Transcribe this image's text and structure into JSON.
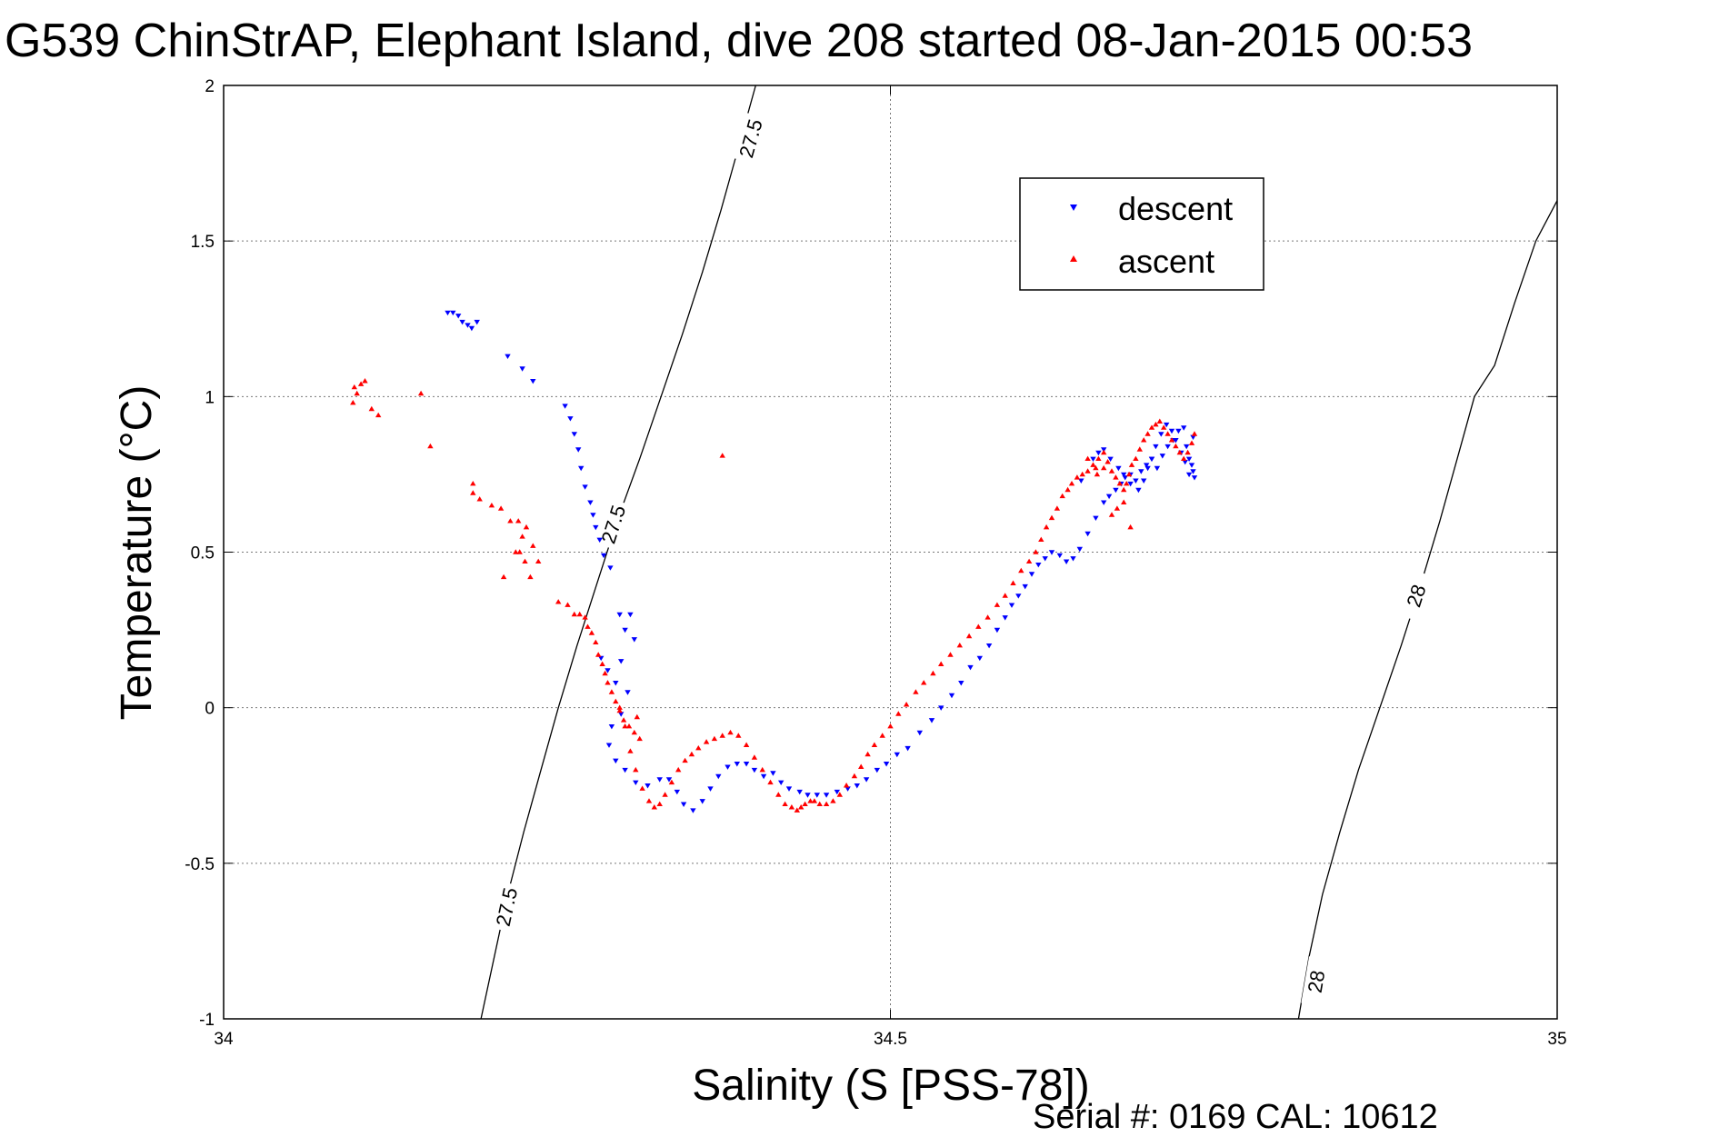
{
  "chart_data": {
    "type": "scatter",
    "title": "G539 ChinStrAP, Elephant Island, dive 208 started 08-Jan-2015 00:53",
    "xlabel": "Salinity (S [PSS-78])",
    "ylabel": "Temperature (°C)",
    "xlim": [
      34,
      35
    ],
    "ylim": [
      -1,
      2
    ],
    "xticks": [
      34,
      34.5,
      35
    ],
    "xtick_labels": [
      "34",
      "34.5",
      "35"
    ],
    "yticks": [
      -1,
      -0.5,
      0,
      0.5,
      1,
      1.5,
      2
    ],
    "ytick_labels": [
      "-1",
      "-0.5",
      "0",
      "0.5",
      "1",
      "1.5",
      "2"
    ],
    "grid": true,
    "legend_position": "top-right",
    "footer": "Serial #: 0169 CAL: 10612",
    "colors": {
      "descent": "#0000ff",
      "ascent": "#ff0000",
      "contour": "#000000",
      "grid": "#777777"
    },
    "density_contours": [
      {
        "value": 27.5,
        "x": [
          34.193,
          34.203,
          34.213,
          34.225,
          34.238,
          34.251,
          34.265,
          34.28,
          34.295,
          34.312,
          34.328,
          34.344,
          34.359,
          34.373,
          34.386,
          34.399
        ],
        "y": [
          -1.0,
          -0.8,
          -0.6,
          -0.4,
          -0.2,
          0.0,
          0.2,
          0.4,
          0.6,
          0.8,
          1.0,
          1.2,
          1.4,
          1.6,
          1.8,
          2.0
        ],
        "labels": [
          {
            "text": "27.5",
            "x": 34.212,
            "y": -0.64
          },
          {
            "text": "27.5",
            "x": 34.292,
            "y": 0.59
          },
          {
            "text": "27.5",
            "x": 34.395,
            "y": 1.83
          }
        ]
      },
      {
        "value": 28,
        "x": [
          34.806,
          34.814,
          34.824,
          34.837,
          34.851,
          34.867,
          34.883,
          34.898,
          34.912,
          34.925,
          34.938,
          34.953,
          34.968,
          34.984,
          35.0
        ],
        "y": [
          -1.0,
          -0.8,
          -0.6,
          -0.4,
          -0.2,
          0.0,
          0.2,
          0.4,
          0.6,
          0.8,
          1.0,
          1.1,
          1.3,
          1.5,
          1.63
        ],
        "labels": [
          {
            "text": "28",
            "x": 34.819,
            "y": -0.88
          },
          {
            "text": "28",
            "x": 34.894,
            "y": 0.36
          }
        ]
      }
    ],
    "series": [
      {
        "name": "descent",
        "marker": "triangle-down",
        "x": [
          34.168,
          34.172,
          34.176,
          34.179,
          34.183,
          34.186,
          34.19,
          34.213,
          34.224,
          34.232,
          34.256,
          34.26,
          34.263,
          34.266,
          34.268,
          34.271,
          34.275,
          34.277,
          34.279,
          34.282,
          34.285,
          34.29,
          34.297,
          34.301,
          34.305,
          34.308,
          34.283,
          34.288,
          34.294,
          34.298,
          34.303,
          34.298,
          34.291,
          34.289,
          34.294,
          34.301,
          34.309,
          34.318,
          34.327,
          34.334,
          34.34,
          34.345,
          34.352,
          34.359,
          34.365,
          34.371,
          34.378,
          34.385,
          34.392,
          34.398,
          34.405,
          34.412,
          34.418,
          34.424,
          34.432,
          34.438,
          34.445,
          34.452,
          34.46,
          34.468,
          34.475,
          34.482,
          34.49,
          34.497,
          34.505,
          34.513,
          34.522,
          34.531,
          34.538,
          34.546,
          34.553,
          34.56,
          34.567,
          34.574,
          34.58,
          34.586,
          34.591,
          34.596,
          34.601,
          34.606,
          34.611,
          34.616,
          34.621,
          34.627,
          34.632,
          34.637,
          34.642,
          34.648,
          34.654,
          34.66,
          34.664,
          34.669,
          34.673,
          34.676,
          34.68,
          34.684,
          34.688,
          34.692,
          34.696,
          34.7,
          34.704,
          34.708,
          34.712,
          34.716,
          34.72,
          34.722,
          34.724,
          34.726,
          34.727,
          34.728,
          34.724,
          34.721,
          34.718,
          34.714,
          34.711,
          34.707,
          34.703,
          34.699,
          34.696,
          34.693,
          34.69,
          34.686,
          34.68,
          34.675,
          34.671,
          34.665,
          34.66,
          34.656,
          34.652,
          34.643,
          34.727
        ],
        "y": [
          1.27,
          1.27,
          1.26,
          1.24,
          1.23,
          1.22,
          1.24,
          1.13,
          1.09,
          1.05,
          0.97,
          0.93,
          0.88,
          0.83,
          0.77,
          0.71,
          0.66,
          0.62,
          0.58,
          0.54,
          0.49,
          0.45,
          0.3,
          0.25,
          0.3,
          0.22,
          0.16,
          0.12,
          0.08,
          0.15,
          0.05,
          -0.02,
          -0.06,
          -0.12,
          -0.17,
          -0.2,
          -0.24,
          -0.25,
          -0.23,
          -0.23,
          -0.27,
          -0.31,
          -0.33,
          -0.3,
          -0.26,
          -0.22,
          -0.19,
          -0.18,
          -0.18,
          -0.2,
          -0.22,
          -0.21,
          -0.24,
          -0.26,
          -0.27,
          -0.28,
          -0.28,
          -0.28,
          -0.27,
          -0.26,
          -0.25,
          -0.23,
          -0.2,
          -0.18,
          -0.15,
          -0.13,
          -0.08,
          -0.04,
          0.0,
          0.04,
          0.08,
          0.13,
          0.16,
          0.2,
          0.25,
          0.29,
          0.33,
          0.36,
          0.39,
          0.43,
          0.46,
          0.48,
          0.5,
          0.49,
          0.47,
          0.48,
          0.51,
          0.56,
          0.61,
          0.66,
          0.68,
          0.7,
          0.72,
          0.74,
          0.75,
          0.73,
          0.76,
          0.78,
          0.8,
          0.77,
          0.81,
          0.84,
          0.86,
          0.89,
          0.9,
          0.84,
          0.8,
          0.78,
          0.76,
          0.74,
          0.75,
          0.79,
          0.82,
          0.86,
          0.89,
          0.91,
          0.88,
          0.84,
          0.8,
          0.77,
          0.73,
          0.7,
          0.72,
          0.75,
          0.77,
          0.8,
          0.83,
          0.82,
          0.8,
          0.73,
          0.87
        ]
      },
      {
        "name": "ascent",
        "marker": "triangle-up",
        "x": [
          34.097,
          34.1,
          34.103,
          34.106,
          34.098,
          34.111,
          34.116,
          34.148,
          34.155,
          34.187,
          34.187,
          34.192,
          34.201,
          34.208,
          34.215,
          34.221,
          34.227,
          34.232,
          34.236,
          34.222,
          34.226,
          34.23,
          34.219,
          34.21,
          34.224,
          34.251,
          34.258,
          34.263,
          34.267,
          34.271,
          34.273,
          34.276,
          34.279,
          34.281,
          34.284,
          34.286,
          34.288,
          34.291,
          34.294,
          34.297,
          34.3,
          34.304,
          34.308,
          34.312,
          34.297,
          34.301,
          34.305,
          34.309,
          34.314,
          34.319,
          34.323,
          34.327,
          34.331,
          34.336,
          34.341,
          34.346,
          34.351,
          34.356,
          34.362,
          34.368,
          34.374,
          34.38,
          34.386,
          34.392,
          34.398,
          34.404,
          34.41,
          34.416,
          34.421,
          34.426,
          34.43,
          34.433,
          34.436,
          34.44,
          34.443,
          34.447,
          34.452,
          34.457,
          34.462,
          34.467,
          34.473,
          34.478,
          34.483,
          34.488,
          34.494,
          34.5,
          34.506,
          34.512,
          34.519,
          34.525,
          34.532,
          34.538,
          34.545,
          34.552,
          34.559,
          34.566,
          34.573,
          34.58,
          34.586,
          34.592,
          34.598,
          34.604,
          34.609,
          34.613,
          34.617,
          34.621,
          34.625,
          34.629,
          34.633,
          34.636,
          34.64,
          34.644,
          34.648,
          34.652,
          34.656,
          34.66,
          34.663,
          34.666,
          34.669,
          34.672,
          34.675,
          34.677,
          34.679,
          34.681,
          34.684,
          34.687,
          34.69,
          34.693,
          34.696,
          34.699,
          34.702,
          34.705,
          34.708,
          34.711,
          34.714,
          34.717,
          34.72,
          34.723,
          34.726,
          34.728,
          34.666,
          34.67,
          34.675,
          34.68,
          34.655,
          34.66,
          34.648,
          34.654,
          34.31,
          34.374
        ],
        "y": [
          0.98,
          1.01,
          1.04,
          1.05,
          1.03,
          0.96,
          0.94,
          1.01,
          0.84,
          0.72,
          0.69,
          0.67,
          0.65,
          0.64,
          0.6,
          0.6,
          0.58,
          0.52,
          0.47,
          0.5,
          0.47,
          0.42,
          0.5,
          0.42,
          0.55,
          0.34,
          0.33,
          0.3,
          0.3,
          0.29,
          0.26,
          0.24,
          0.21,
          0.17,
          0.14,
          0.11,
          0.08,
          0.05,
          0.02,
          -0.01,
          -0.04,
          -0.06,
          -0.08,
          -0.1,
          0.0,
          -0.06,
          -0.14,
          -0.2,
          -0.26,
          -0.3,
          -0.32,
          -0.31,
          -0.28,
          -0.24,
          -0.2,
          -0.17,
          -0.15,
          -0.13,
          -0.11,
          -0.1,
          -0.09,
          -0.08,
          -0.09,
          -0.12,
          -0.16,
          -0.2,
          -0.24,
          -0.28,
          -0.31,
          -0.32,
          -0.33,
          -0.32,
          -0.31,
          -0.3,
          -0.3,
          -0.31,
          -0.31,
          -0.3,
          -0.28,
          -0.25,
          -0.22,
          -0.19,
          -0.15,
          -0.12,
          -0.09,
          -0.06,
          -0.02,
          0.01,
          0.05,
          0.08,
          0.11,
          0.14,
          0.17,
          0.2,
          0.23,
          0.26,
          0.29,
          0.33,
          0.36,
          0.4,
          0.44,
          0.47,
          0.5,
          0.54,
          0.58,
          0.61,
          0.64,
          0.68,
          0.7,
          0.72,
          0.74,
          0.75,
          0.76,
          0.78,
          0.8,
          0.82,
          0.79,
          0.76,
          0.74,
          0.72,
          0.7,
          0.72,
          0.75,
          0.78,
          0.8,
          0.83,
          0.86,
          0.88,
          0.9,
          0.91,
          0.92,
          0.9,
          0.88,
          0.86,
          0.84,
          0.82,
          0.8,
          0.82,
          0.85,
          0.88,
          0.62,
          0.64,
          0.66,
          0.58,
          0.75,
          0.77,
          0.8,
          0.77,
          -0.03,
          0.81
        ]
      }
    ]
  }
}
